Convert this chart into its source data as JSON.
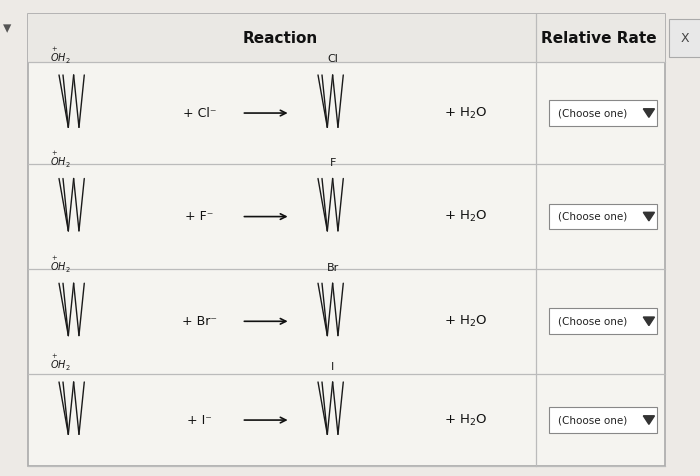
{
  "title_reaction": "Reaction",
  "title_rate": "Relative Rate",
  "bg_color": "#edeae6",
  "table_bg": "#f5f4f1",
  "border_color": "#bbbbbb",
  "rows": [
    {
      "nucleophile": "Cl⁻",
      "halogen_label": "Cl"
    },
    {
      "nucleophile": "F⁻",
      "halogen_label": "F"
    },
    {
      "nucleophile": "Br⁻",
      "halogen_label": "Br"
    },
    {
      "nucleophile": "I⁻",
      "halogen_label": "I"
    }
  ],
  "choose_one_text": "(Choose one)",
  "figwidth": 7.0,
  "figheight": 4.76,
  "dpi": 100
}
